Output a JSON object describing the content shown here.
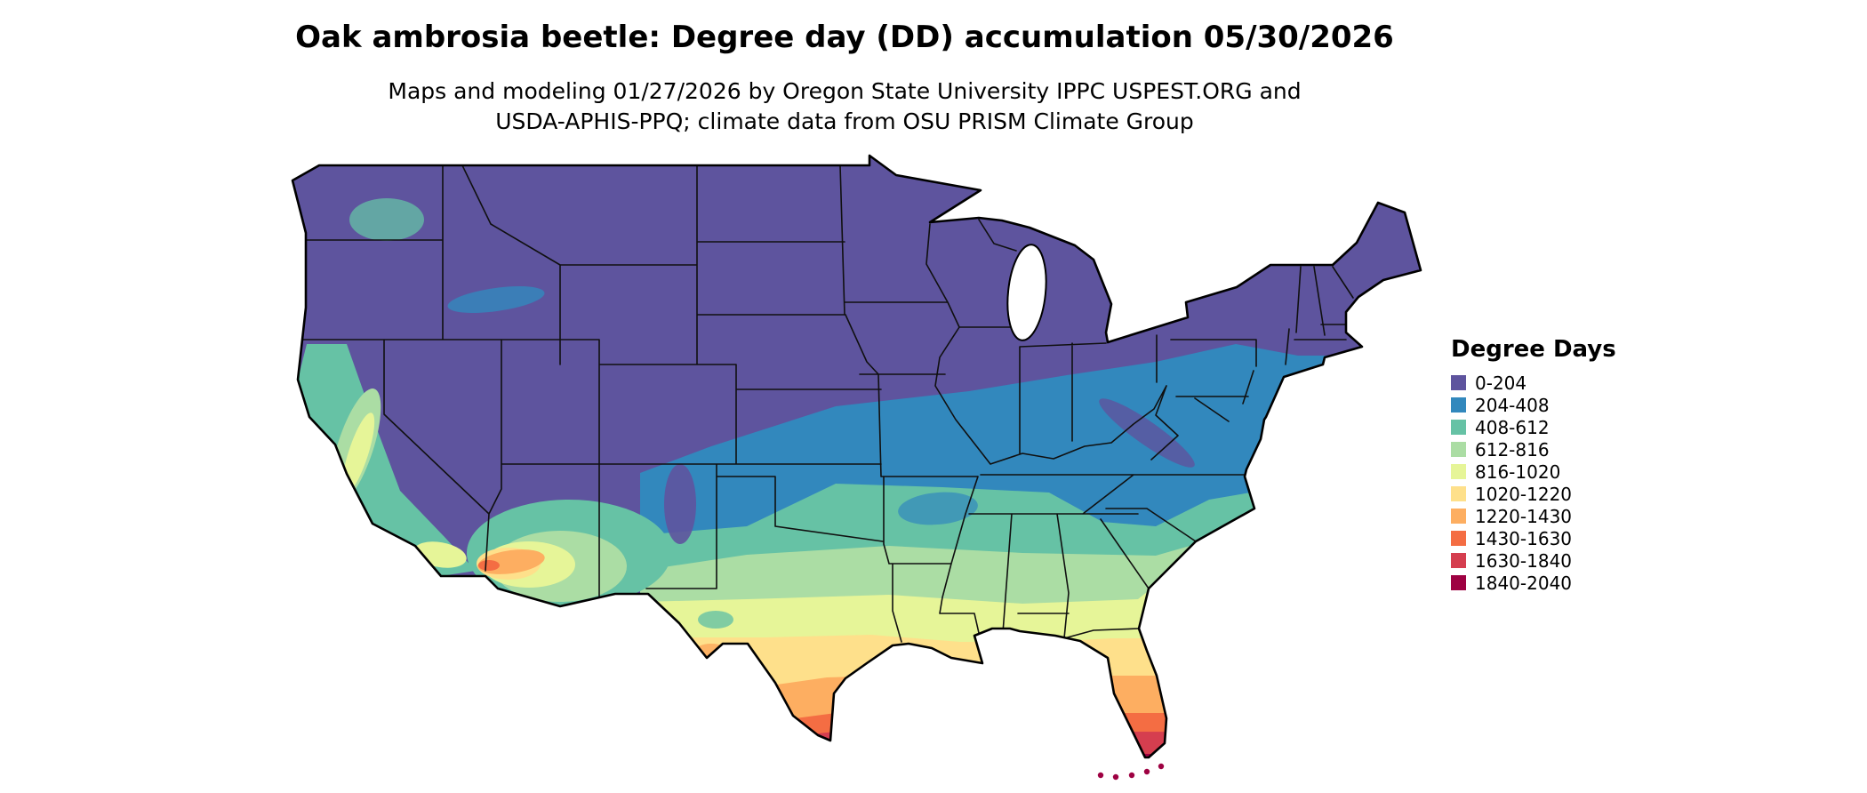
{
  "title": "Oak ambrosia beetle: Degree day (DD) accumulation 05/30/2026",
  "subtitle": {
    "line1": "Maps and modeling 01/27/2026 by Oregon State University IPPC USPEST.ORG and",
    "line2": "USDA-APHIS-PPQ; climate data from OSU PRISM Climate Group"
  },
  "legend": {
    "title": "Degree Days",
    "items": [
      {
        "label": "0-204",
        "color": "#5e549e"
      },
      {
        "label": "204-408",
        "color": "#3288bd"
      },
      {
        "label": "408-612",
        "color": "#66c2a5"
      },
      {
        "label": "612-816",
        "color": "#abdda4"
      },
      {
        "label": "816-1020",
        "color": "#e6f598"
      },
      {
        "label": "1020-1220",
        "color": "#fee08b"
      },
      {
        "label": "1220-1430",
        "color": "#fdae61"
      },
      {
        "label": "1430-1630",
        "color": "#f46d43"
      },
      {
        "label": "1630-1840",
        "color": "#d53e4f"
      },
      {
        "label": "1840-2040",
        "color": "#9e0142"
      }
    ]
  },
  "map": {
    "region": "Conterminous United States",
    "border_color": "#000000",
    "background_color": "#ffffff"
  }
}
